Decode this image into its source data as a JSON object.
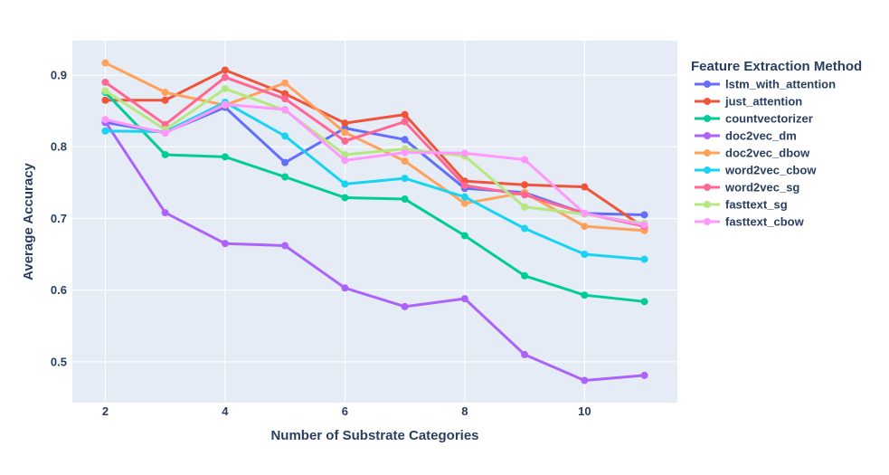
{
  "chart_data": {
    "type": "line",
    "xlabel": "Number of Substrate Categories",
    "ylabel": "Average Accuracy",
    "xlim": [
      1.45,
      11.55
    ],
    "ylim": [
      0.443,
      0.948
    ],
    "x_ticks": [
      2,
      4,
      6,
      8,
      10
    ],
    "y_ticks": [
      0.5,
      0.6,
      0.7,
      0.8,
      0.9
    ],
    "grid": true,
    "legend": {
      "title": "Feature Extraction Method",
      "placement": "right"
    },
    "x": [
      2,
      3,
      4,
      5,
      6,
      7,
      8,
      9,
      10,
      11
    ],
    "series": [
      {
        "name": "lstm_with_attention",
        "color": "#636efa",
        "values": [
          0.834,
          0.82,
          0.855,
          0.778,
          0.826,
          0.81,
          0.742,
          0.736,
          0.707,
          0.705
        ]
      },
      {
        "name": "just_attention",
        "color": "#ef553b",
        "values": [
          0.865,
          0.865,
          0.907,
          0.874,
          0.833,
          0.845,
          0.752,
          0.747,
          0.744,
          0.687
        ]
      },
      {
        "name": "countvectorizer",
        "color": "#00cc96",
        "values": [
          0.876,
          0.789,
          0.786,
          0.758,
          0.729,
          0.727,
          0.676,
          0.62,
          0.593,
          0.584
        ]
      },
      {
        "name": "doc2vec_dm",
        "color": "#ab63fa",
        "values": [
          0.835,
          0.708,
          0.665,
          0.662,
          0.603,
          0.577,
          0.588,
          0.51,
          0.474,
          0.481
        ]
      },
      {
        "name": "doc2vec_dbow",
        "color": "#ffa15a",
        "values": [
          0.917,
          0.876,
          0.858,
          0.889,
          0.82,
          0.78,
          0.721,
          0.736,
          0.689,
          0.683
        ]
      },
      {
        "name": "word2vec_cbow",
        "color": "#19d3f3",
        "values": [
          0.822,
          0.821,
          0.862,
          0.815,
          0.748,
          0.756,
          0.73,
          0.686,
          0.65,
          0.643
        ]
      },
      {
        "name": "word2vec_sg",
        "color": "#ff6692",
        "values": [
          0.89,
          0.831,
          0.897,
          0.867,
          0.808,
          0.835,
          0.746,
          0.733,
          0.707,
          0.689
        ]
      },
      {
        "name": "fasttext_sg",
        "color": "#b6e880",
        "values": [
          0.878,
          0.824,
          0.881,
          0.851,
          0.789,
          0.797,
          0.787,
          0.716,
          0.706,
          0.693
        ]
      },
      {
        "name": "fasttext_cbow",
        "color": "#ff97ff",
        "values": [
          0.838,
          0.819,
          0.859,
          0.852,
          0.781,
          0.792,
          0.791,
          0.782,
          0.707,
          0.691
        ]
      }
    ]
  }
}
